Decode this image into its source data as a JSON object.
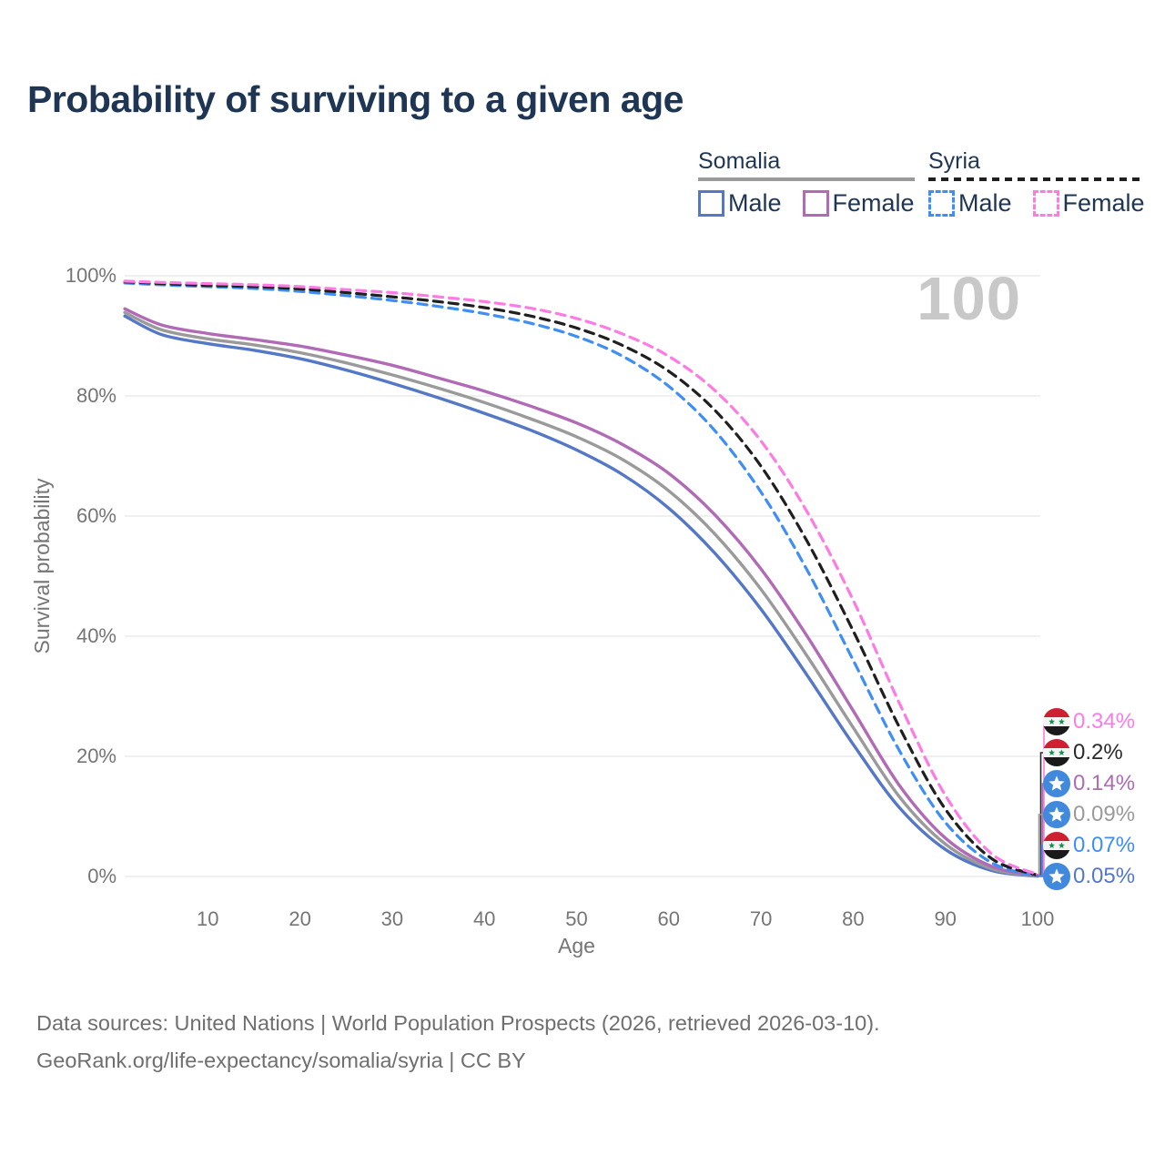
{
  "title": "Probability of surviving to a given age",
  "watermark_age": "100",
  "legend": {
    "groups": [
      {
        "name": "Somalia",
        "line_style": "solid",
        "line_color": "#9a9a9a",
        "items": [
          {
            "label": "Male",
            "color": "#5478c7",
            "style": "solid"
          },
          {
            "label": "Female",
            "color": "#b16ab5",
            "style": "solid"
          }
        ]
      },
      {
        "name": "Syria",
        "line_style": "dashed",
        "line_color": "#1f1f1f",
        "items": [
          {
            "label": "Male",
            "color": "#3e8ef5",
            "style": "dashed"
          },
          {
            "label": "Female",
            "color": "#fc7ce4",
            "style": "dashed"
          }
        ]
      }
    ]
  },
  "chart_data": {
    "type": "line",
    "title": "Probability of surviving to a given age",
    "xlabel": "Age",
    "ylabel": "Survival probability",
    "xlim": [
      0,
      100
    ],
    "ylim": [
      0,
      100
    ],
    "x_ticks": [
      "10",
      "20",
      "30",
      "40",
      "50",
      "60",
      "70",
      "80",
      "90",
      "100"
    ],
    "y_ticks": [
      "0%",
      "20%",
      "40%",
      "60%",
      "80%",
      "100%"
    ],
    "grid": "horizontal",
    "legend_position": "top-right",
    "x": [
      1,
      5,
      10,
      15,
      20,
      25,
      30,
      35,
      40,
      45,
      50,
      55,
      60,
      65,
      70,
      75,
      80,
      85,
      90,
      95,
      100
    ],
    "series": [
      {
        "name": "Somalia Male",
        "country": "Somalia",
        "sex": "male",
        "color": "#5478c7",
        "dash": false,
        "end_label": "0.05%",
        "values": [
          93.3,
          90.2,
          88.7,
          87.6,
          86.2,
          84.3,
          82.1,
          79.7,
          77.1,
          74.3,
          71.0,
          66.9,
          61.3,
          53.8,
          44.5,
          33.5,
          22.0,
          11.5,
          4.5,
          1.0,
          0.05
        ]
      },
      {
        "name": "Somalia Overall",
        "country": "Somalia",
        "sex": "both",
        "color": "#9a9a9a",
        "dash": false,
        "end_label": "0.09%",
        "values": [
          93.9,
          91.0,
          89.5,
          88.5,
          87.2,
          85.5,
          83.5,
          81.3,
          78.9,
          76.2,
          73.2,
          69.4,
          64.2,
          57.0,
          47.8,
          36.7,
          24.8,
          13.3,
          5.4,
          1.3,
          0.09
        ]
      },
      {
        "name": "Somalia Female",
        "country": "Somalia",
        "sex": "female",
        "color": "#b16ab5",
        "dash": false,
        "end_label": "0.14%",
        "values": [
          94.5,
          91.8,
          90.4,
          89.4,
          88.3,
          86.8,
          85.1,
          83.0,
          80.8,
          78.3,
          75.5,
          71.9,
          67.1,
          60.2,
          51.2,
          40.0,
          27.6,
          15.2,
          6.4,
          1.7,
          0.14
        ]
      },
      {
        "name": "Syria Male",
        "country": "Syria",
        "sex": "male",
        "color": "#3e8ef5",
        "dash": true,
        "end_label": "0.07%",
        "values": [
          98.8,
          98.5,
          98.2,
          97.9,
          97.4,
          96.7,
          95.9,
          94.9,
          93.7,
          92.1,
          89.9,
          86.6,
          81.6,
          74.2,
          64.0,
          51.0,
          36.0,
          21.0,
          9.0,
          2.3,
          0.07
        ]
      },
      {
        "name": "Syria Overall",
        "country": "Syria",
        "sex": "both",
        "color": "#1f1f1f",
        "dash": true,
        "end_label": "0.2%",
        "values": [
          99.0,
          98.7,
          98.4,
          98.2,
          97.8,
          97.2,
          96.5,
          95.7,
          94.7,
          93.3,
          91.3,
          88.4,
          84.1,
          77.6,
          68.3,
          55.8,
          40.9,
          24.9,
          11.2,
          3.0,
          0.2
        ]
      },
      {
        "name": "Syria Female",
        "country": "Syria",
        "sex": "female",
        "color": "#fc7ce4",
        "dash": true,
        "end_label": "0.34%",
        "values": [
          99.1,
          98.9,
          98.7,
          98.5,
          98.2,
          97.7,
          97.2,
          96.5,
          95.7,
          94.6,
          92.9,
          90.3,
          86.6,
          80.9,
          72.5,
          60.7,
          46.0,
          28.9,
          13.5,
          3.8,
          0.34
        ]
      }
    ]
  },
  "end_labels": [
    {
      "flag": "syria",
      "value": "0.34%",
      "color": "#fc7ce4"
    },
    {
      "flag": "syria",
      "value": "0.2%",
      "color": "#2a2a2a"
    },
    {
      "flag": "somalia",
      "value": "0.14%",
      "color": "#b16ab5"
    },
    {
      "flag": "somalia",
      "value": "0.09%",
      "color": "#9a9a9a"
    },
    {
      "flag": "syria",
      "value": "0.07%",
      "color": "#3e8ef5"
    },
    {
      "flag": "somalia",
      "value": "0.05%",
      "color": "#5478c7"
    }
  ],
  "footer": {
    "line1": "Data sources: United Nations | World Population Prospects (2026, retrieved 2026-03-10).",
    "line2": "GeoRank.org/life-expectancy/somalia/syria | CC BY"
  }
}
